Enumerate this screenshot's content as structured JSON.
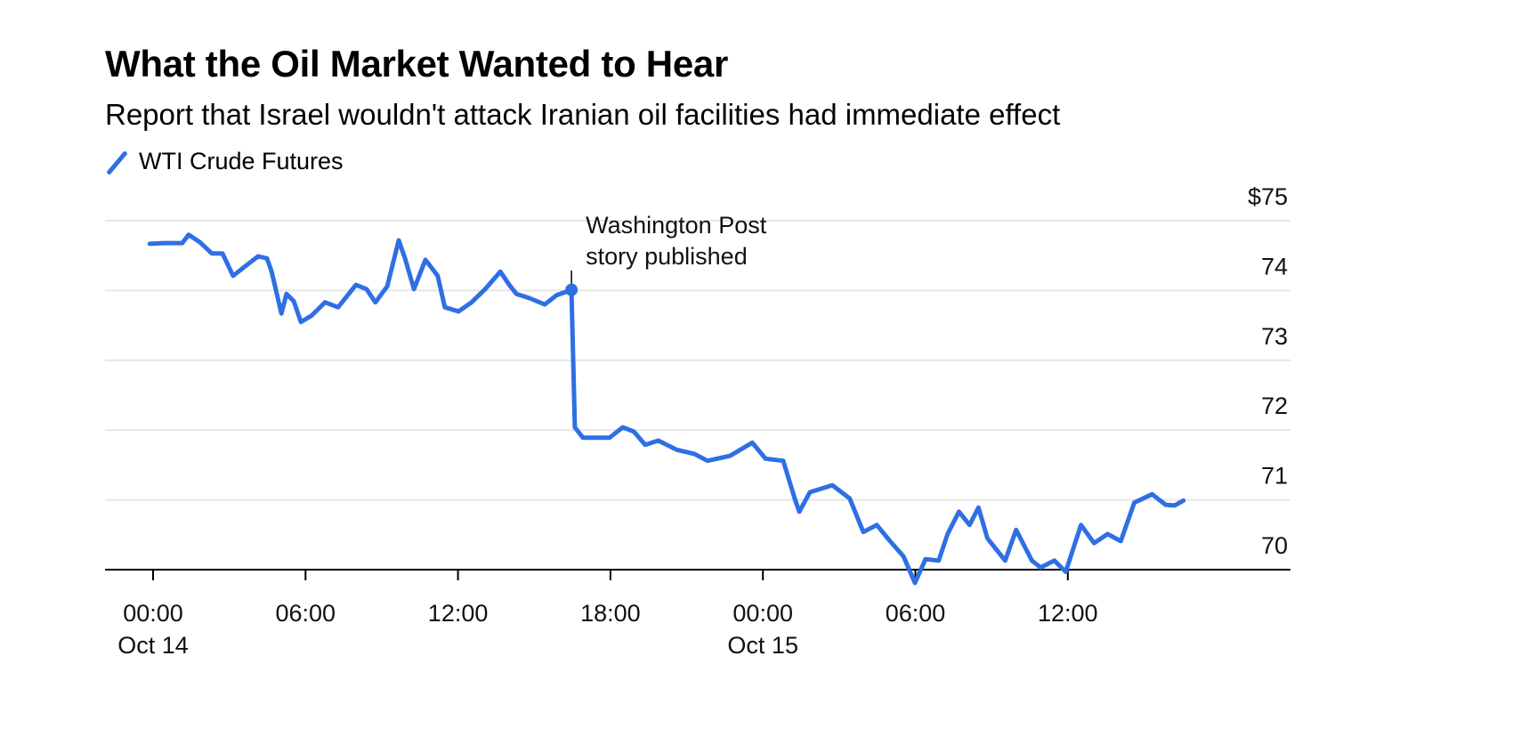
{
  "chart_data": {
    "type": "line",
    "title": "What the Oil Market Wanted to Hear",
    "subtitle": "Report that Israel wouldn't attack Iranian oil facilities had immediate effect",
    "legend": {
      "placement": "top-left",
      "entries": [
        "WTI Crude Futures"
      ]
    },
    "colors": {
      "line": "#2f6fe4",
      "grid": "#e6e6e6",
      "axis": "#000000"
    },
    "grid": true,
    "ylim": [
      70,
      75
    ],
    "y_ticks": [
      "$75",
      "74",
      "73",
      "72",
      "71",
      "70"
    ],
    "y_tick_values": [
      75,
      74,
      73,
      72,
      71,
      70
    ],
    "y_axis_side": "right",
    "x_ticks": [
      {
        "value": "Oct 14 00:00",
        "time": "00:00",
        "date": "Oct 14"
      },
      {
        "value": "Oct 14 06:00",
        "time": "06:00",
        "date": ""
      },
      {
        "value": "Oct 14 12:00",
        "time": "12:00",
        "date": ""
      },
      {
        "value": "Oct 14 18:00",
        "time": "18:00",
        "date": ""
      },
      {
        "value": "Oct 15 00:00",
        "time": "00:00",
        "date": "Oct 15"
      },
      {
        "value": "Oct 15 06:00",
        "time": "06:00",
        "date": ""
      },
      {
        "value": "Oct 15 12:00",
        "time": "12:00",
        "date": ""
      }
    ],
    "annotation": {
      "x": "Oct 14 16:28",
      "y": 74.01,
      "lines": [
        "Washington Post",
        "story published"
      ]
    },
    "series": [
      {
        "name": "WTI Crude Futures",
        "points": [
          [
            "Oct 13 23:52",
            74.67
          ],
          [
            "Oct 14 00:27",
            74.68
          ],
          [
            "Oct 14 01:09",
            74.68
          ],
          [
            "Oct 14 01:24",
            74.8
          ],
          [
            "Oct 14 01:51",
            74.69
          ],
          [
            "Oct 14 02:19",
            74.53
          ],
          [
            "Oct 14 02:44",
            74.53
          ],
          [
            "Oct 14 03:09",
            74.21
          ],
          [
            "Oct 14 03:36",
            74.34
          ],
          [
            "Oct 14 04:08",
            74.49
          ],
          [
            "Oct 14 04:29",
            74.46
          ],
          [
            "Oct 14 04:40",
            74.27
          ],
          [
            "Oct 14 05:03",
            73.67
          ],
          [
            "Oct 14 05:15",
            73.95
          ],
          [
            "Oct 14 05:32",
            73.85
          ],
          [
            "Oct 14 05:49",
            73.55
          ],
          [
            "Oct 14 06:14",
            73.64
          ],
          [
            "Oct 14 06:46",
            73.83
          ],
          [
            "Oct 14 07:17",
            73.76
          ],
          [
            "Oct 14 07:59",
            74.08
          ],
          [
            "Oct 14 08:24",
            74.02
          ],
          [
            "Oct 14 08:45",
            73.83
          ],
          [
            "Oct 14 09:13",
            74.06
          ],
          [
            "Oct 14 09:40",
            74.72
          ],
          [
            "Oct 14 09:55",
            74.46
          ],
          [
            "Oct 14 10:16",
            74.02
          ],
          [
            "Oct 14 10:43",
            74.44
          ],
          [
            "Oct 14 11:12",
            74.21
          ],
          [
            "Oct 14 11:29",
            73.76
          ],
          [
            "Oct 14 12:01",
            73.7
          ],
          [
            "Oct 14 12:32",
            73.83
          ],
          [
            "Oct 14 13:04",
            74.02
          ],
          [
            "Oct 14 13:40",
            74.27
          ],
          [
            "Oct 14 14:01",
            74.08
          ],
          [
            "Oct 14 14:18",
            73.95
          ],
          [
            "Oct 14 14:49",
            73.89
          ],
          [
            "Oct 14 15:25",
            73.8
          ],
          [
            "Oct 14 15:52",
            73.93
          ],
          [
            "Oct 14 16:28",
            74.01
          ],
          [
            "Oct 14 16:36",
            72.04
          ],
          [
            "Oct 14 16:55",
            71.89
          ],
          [
            "Oct 14 17:58",
            71.89
          ],
          [
            "Oct 14 18:29",
            72.04
          ],
          [
            "Oct 14 18:55",
            71.98
          ],
          [
            "Oct 14 19:22",
            71.79
          ],
          [
            "Oct 14 19:53",
            71.85
          ],
          [
            "Oct 14 20:36",
            71.72
          ],
          [
            "Oct 14 21:18",
            71.66
          ],
          [
            "Oct 14 21:49",
            71.56
          ],
          [
            "Oct 14 22:42",
            71.63
          ],
          [
            "Oct 14 23:35",
            71.82
          ],
          [
            "Oct 15 00:06",
            71.59
          ],
          [
            "Oct 15 00:48",
            71.56
          ],
          [
            "Oct 15 01:15",
            71.02
          ],
          [
            "Oct 15 01:26",
            70.83
          ],
          [
            "Oct 15 01:51",
            71.11
          ],
          [
            "Oct 15 02:44",
            71.21
          ],
          [
            "Oct 15 03:25",
            71.02
          ],
          [
            "Oct 15 03:57",
            70.54
          ],
          [
            "Oct 15 04:29",
            70.64
          ],
          [
            "Oct 15 05:00",
            70.41
          ],
          [
            "Oct 15 05:32",
            70.19
          ],
          [
            "Oct 15 05:59",
            69.81
          ],
          [
            "Oct 15 06:24",
            70.15
          ],
          [
            "Oct 15 06:55",
            70.13
          ],
          [
            "Oct 15 07:16",
            70.51
          ],
          [
            "Oct 15 07:43",
            70.83
          ],
          [
            "Oct 15 08:08",
            70.64
          ],
          [
            "Oct 15 08:29",
            70.89
          ],
          [
            "Oct 15 08:50",
            70.45
          ],
          [
            "Oct 15 09:32",
            70.13
          ],
          [
            "Oct 15 09:58",
            70.57
          ],
          [
            "Oct 15 10:35",
            70.13
          ],
          [
            "Oct 15 10:56",
            70.03
          ],
          [
            "Oct 15 11:28",
            70.13
          ],
          [
            "Oct 15 11:55",
            69.97
          ],
          [
            "Oct 15 12:31",
            70.64
          ],
          [
            "Oct 15 13:02",
            70.38
          ],
          [
            "Oct 15 13:34",
            70.51
          ],
          [
            "Oct 15 14:05",
            70.41
          ],
          [
            "Oct 15 14:37",
            70.96
          ],
          [
            "Oct 15 15:19",
            71.08
          ],
          [
            "Oct 15 15:51",
            70.93
          ],
          [
            "Oct 15 16:12",
            70.92
          ],
          [
            "Oct 15 16:33",
            70.99
          ]
        ]
      }
    ]
  }
}
